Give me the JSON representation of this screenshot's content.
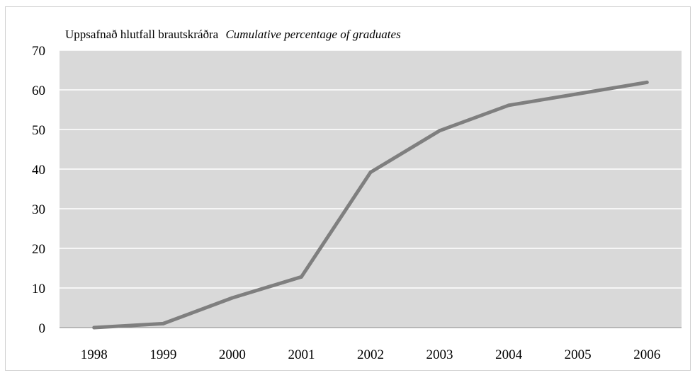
{
  "chart_data": {
    "type": "line",
    "title": "Uppsafnað hlutfall brautskráðra",
    "subtitle": "Cumulative percentage of graduates",
    "xlabel": "",
    "ylabel": "",
    "categories": [
      "1998",
      "1999",
      "2000",
      "2001",
      "2002",
      "2003",
      "2004",
      "2005",
      "2006"
    ],
    "series": [
      {
        "values": [
          0,
          1,
          7.5,
          12.8,
          39.2,
          49.7,
          56.1,
          59,
          61.9
        ]
      }
    ],
    "ylim": [
      0,
      70
    ],
    "yticks": [
      0,
      10,
      20,
      30,
      40,
      50,
      60,
      70
    ],
    "grid": true,
    "legend": "none",
    "colors": {
      "line": "#7f7f7f",
      "plot_background": "#d9d9d9",
      "gridline": "#ffffff",
      "axis": "#888888"
    }
  }
}
